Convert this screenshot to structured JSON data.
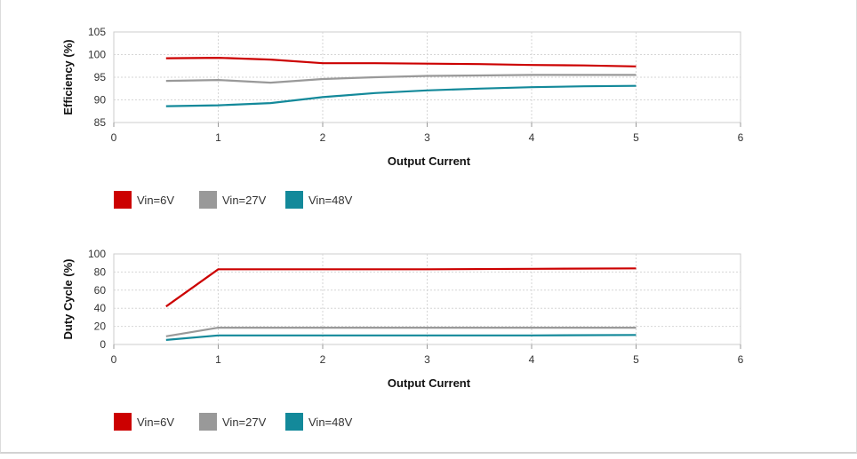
{
  "chart_data": [
    {
      "type": "line",
      "xlabel": "Output Current",
      "ylabel": "Efficiency (%)",
      "xlim": [
        0,
        6
      ],
      "ylim": [
        85,
        105
      ],
      "xticks": [
        0,
        1,
        2,
        3,
        4,
        5,
        6
      ],
      "yticks": [
        85,
        90,
        95,
        100,
        105
      ],
      "grid": true,
      "legend_position": "bottom-left",
      "series": [
        {
          "name": "Vin=6V",
          "color": "#cc0000",
          "points": [
            [
              0.5,
              99.2
            ],
            [
              1,
              99.3
            ],
            [
              1.5,
              98.9
            ],
            [
              2,
              98.1
            ],
            [
              2.5,
              98.1
            ],
            [
              3,
              98.0
            ],
            [
              3.5,
              97.9
            ],
            [
              4,
              97.7
            ],
            [
              4.5,
              97.6
            ],
            [
              5,
              97.4
            ]
          ]
        },
        {
          "name": "Vin=27V",
          "color": "#999999",
          "points": [
            [
              0.5,
              94.2
            ],
            [
              1,
              94.4
            ],
            [
              1.5,
              93.8
            ],
            [
              2,
              94.6
            ],
            [
              2.5,
              95.0
            ],
            [
              3,
              95.3
            ],
            [
              3.5,
              95.4
            ],
            [
              4,
              95.5
            ],
            [
              4.5,
              95.5
            ],
            [
              5,
              95.5
            ]
          ]
        },
        {
          "name": "Vin=48V",
          "color": "#13899a",
          "points": [
            [
              0.5,
              88.6
            ],
            [
              1,
              88.8
            ],
            [
              1.5,
              89.3
            ],
            [
              2,
              90.6
            ],
            [
              2.5,
              91.5
            ],
            [
              3,
              92.1
            ],
            [
              3.5,
              92.5
            ],
            [
              4,
              92.8
            ],
            [
              4.5,
              93.0
            ],
            [
              5,
              93.1
            ]
          ]
        }
      ]
    },
    {
      "type": "line",
      "xlabel": "Output Current",
      "ylabel": "Duty Cycle (%)",
      "xlim": [
        0,
        6
      ],
      "ylim": [
        0,
        100
      ],
      "xticks": [
        0,
        1,
        2,
        3,
        4,
        5,
        6
      ],
      "yticks": [
        0,
        20,
        40,
        60,
        80,
        100
      ],
      "grid": true,
      "legend_position": "bottom-left",
      "series": [
        {
          "name": "Vin=6V",
          "color": "#cc0000",
          "points": [
            [
              0.5,
              42
            ],
            [
              1,
              83
            ],
            [
              2,
              83
            ],
            [
              3,
              83
            ],
            [
              4,
              83.5
            ],
            [
              5,
              84
            ]
          ]
        },
        {
          "name": "Vin=27V",
          "color": "#999999",
          "points": [
            [
              0.5,
              9
            ],
            [
              1,
              18.5
            ],
            [
              2,
              18.5
            ],
            [
              3,
              18.5
            ],
            [
              4,
              18.5
            ],
            [
              5,
              18.5
            ]
          ]
        },
        {
          "name": "Vin=48V",
          "color": "#13899a",
          "points": [
            [
              0.5,
              5
            ],
            [
              1,
              10
            ],
            [
              2,
              10
            ],
            [
              3,
              10
            ],
            [
              4,
              10
            ],
            [
              5,
              10.5
            ]
          ]
        }
      ]
    }
  ]
}
